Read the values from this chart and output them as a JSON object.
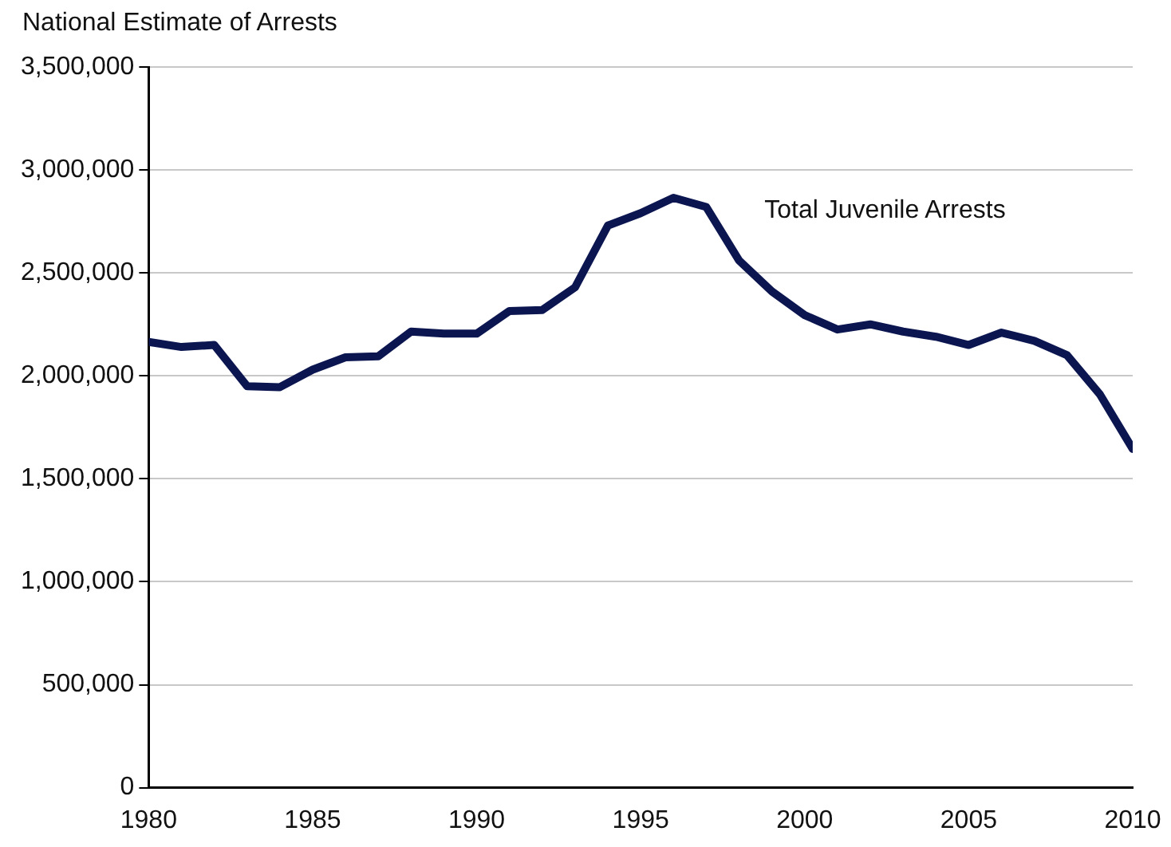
{
  "chart_data": {
    "type": "line",
    "ylabel": "National Estimate of Arrests",
    "x": [
      1980,
      1981,
      1982,
      1983,
      1984,
      1985,
      1986,
      1987,
      1988,
      1989,
      1990,
      1991,
      1992,
      1993,
      1994,
      1995,
      1996,
      1997,
      1998,
      1999,
      2000,
      2001,
      2002,
      2003,
      2004,
      2005,
      2006,
      2007,
      2008,
      2009,
      2010
    ],
    "series": [
      {
        "name": "Total Juvenile Arrests",
        "color": "#0b1650",
        "values": [
          2165000,
          2140000,
          2150000,
          1950000,
          1945000,
          2030000,
          2090000,
          2095000,
          2215000,
          2205000,
          2205000,
          2315000,
          2320000,
          2430000,
          2730000,
          2790000,
          2865000,
          2820000,
          2560000,
          2410000,
          2295000,
          2225000,
          2250000,
          2215000,
          2190000,
          2150000,
          2210000,
          2170000,
          2100000,
          1910000,
          1645000
        ]
      }
    ],
    "xlim": [
      1980,
      2010
    ],
    "xticks": [
      1980,
      1985,
      1990,
      1995,
      2000,
      2005,
      2010
    ],
    "ylim": [
      0,
      3500000
    ],
    "yticks": [
      0,
      {
        "value": 500000,
        "label": "500,000"
      },
      {
        "value": 1000000,
        "label": "1,000,000"
      },
      {
        "value": 1500000,
        "label": "1,500,000"
      },
      {
        "value": 2000000,
        "label": "2,000,000"
      },
      {
        "value": 2500000,
        "label": "2,500,000"
      },
      {
        "value": 3000000,
        "label": "3,000,000"
      },
      {
        "value": 3500000,
        "label": "3,500,000"
      }
    ],
    "grid": "y",
    "legend": false,
    "marker": "none",
    "line_style": "solid"
  }
}
